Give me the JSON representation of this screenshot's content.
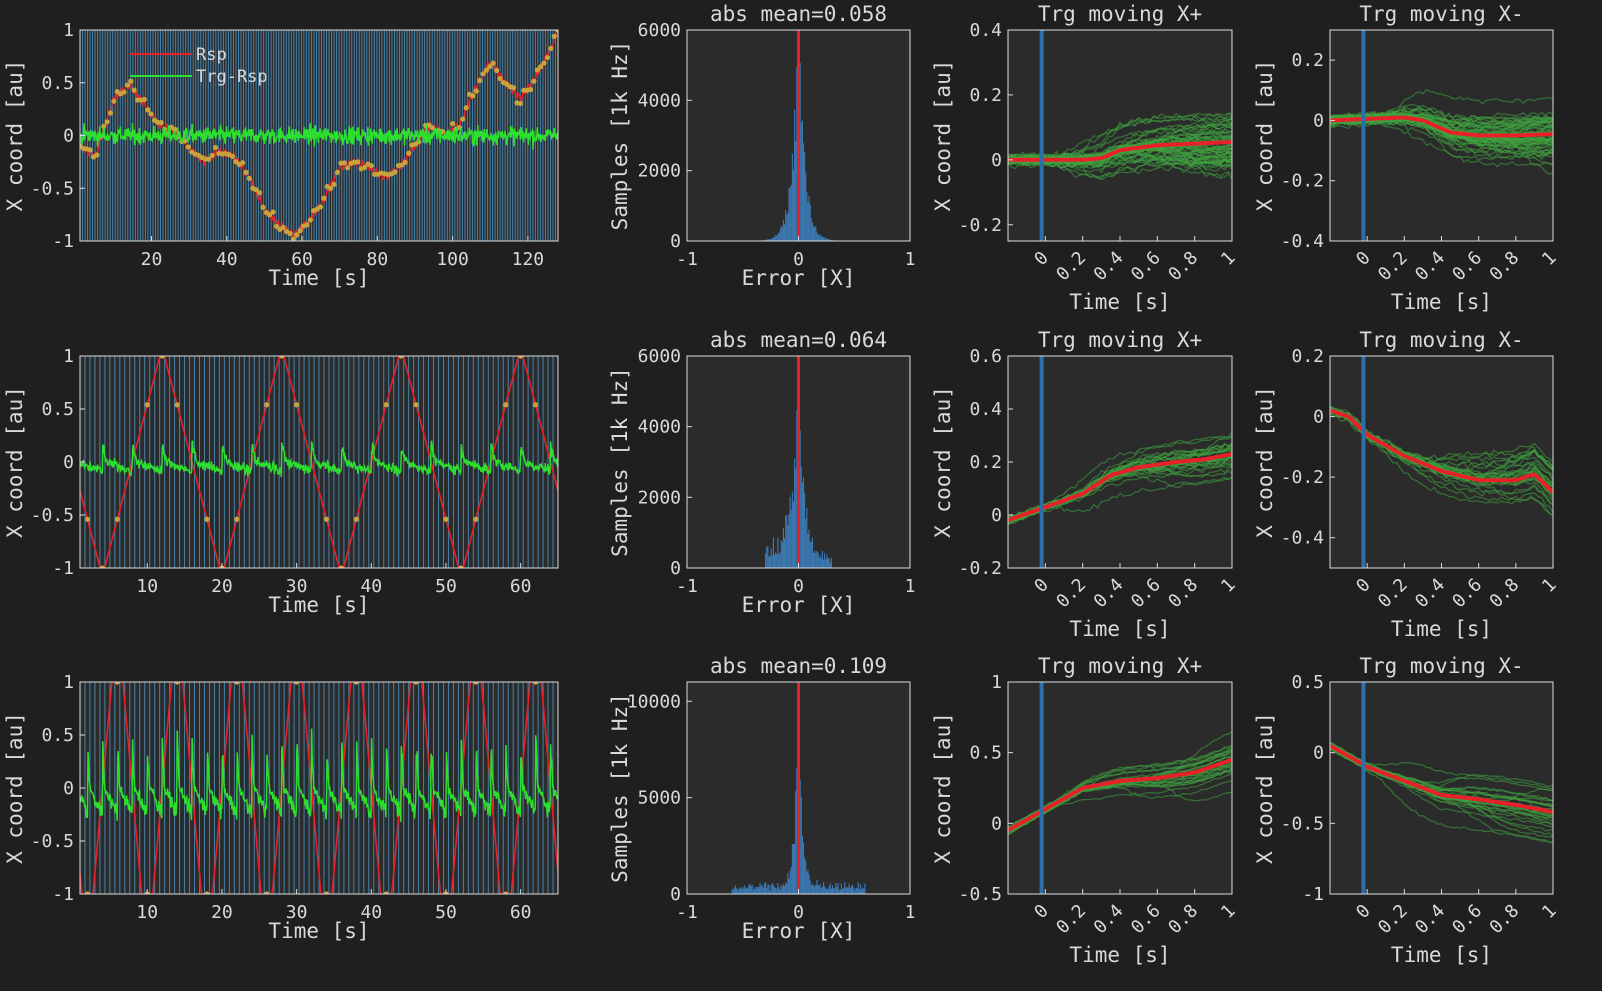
{
  "figure": {
    "background": "#1f1f1f",
    "axes_color": "#2b2b2b",
    "text_color": "#d9d9d9"
  },
  "chart_data": [
    {
      "id": "r1-trace",
      "type": "line",
      "row": 0,
      "col": 0,
      "xlabel": "Time [s]",
      "ylabel": "X coord [au]",
      "xlim": [
        1,
        128
      ],
      "ylim": [
        -1,
        1
      ],
      "xticks": [
        20,
        40,
        60,
        80,
        100,
        120
      ],
      "xtick_labels": [
        "20",
        "40",
        "60",
        "80",
        "100",
        "120"
      ],
      "yticks": [
        -1,
        -0.5,
        0,
        0.5,
        1
      ],
      "ytick_labels": [
        "-1",
        "-0.5",
        "0",
        "0.5",
        "1"
      ],
      "legend": {
        "position": "top-left",
        "entries": [
          "Rsp",
          "Trg-Rsp"
        ]
      },
      "target_markers": "random walk",
      "series": [
        {
          "name": "Rsp",
          "color": "#e8202a",
          "knots": [
            [
              1,
              -0.1
            ],
            [
              5,
              -0.2
            ],
            [
              10,
              0.35
            ],
            [
              14,
              0.48
            ],
            [
              18,
              0.3
            ],
            [
              22,
              0.1
            ],
            [
              26,
              0.05
            ],
            [
              30,
              -0.12
            ],
            [
              34,
              -0.25
            ],
            [
              38,
              -0.15
            ],
            [
              42,
              -0.2
            ],
            [
              46,
              -0.4
            ],
            [
              50,
              -0.7
            ],
            [
              54,
              -0.85
            ],
            [
              58,
              -0.95
            ],
            [
              62,
              -0.8
            ],
            [
              66,
              -0.6
            ],
            [
              70,
              -0.3
            ],
            [
              74,
              -0.25
            ],
            [
              78,
              -0.3
            ],
            [
              82,
              -0.4
            ],
            [
              86,
              -0.3
            ],
            [
              90,
              -0.1
            ],
            [
              94,
              0.1
            ],
            [
              98,
              0.0
            ],
            [
              102,
              0.1
            ],
            [
              106,
              0.45
            ],
            [
              110,
              0.7
            ],
            [
              114,
              0.5
            ],
            [
              118,
              0.35
            ],
            [
              122,
              0.55
            ],
            [
              126,
              0.82
            ],
            [
              128,
              1.0
            ]
          ]
        },
        {
          "name": "Trg-Rsp",
          "color": "#2ee02e",
          "noise": "high-frequency error around 0"
        }
      ]
    },
    {
      "id": "r1-hist",
      "type": "bar",
      "row": 0,
      "col": 1,
      "title": "abs mean=0.058",
      "xlabel": "Error [X]",
      "ylabel": "Samples [1k Hz]",
      "xlim": [
        -1,
        1
      ],
      "ylim": [
        0,
        6000
      ],
      "xticks": [
        -1,
        0,
        1
      ],
      "xtick_labels": [
        "-1",
        "0",
        "1"
      ],
      "yticks": [
        0,
        2000,
        4000,
        6000
      ],
      "ytick_labels": [
        "0",
        "2000",
        "4000",
        "6000"
      ],
      "spread": 0.055,
      "peak": 5900,
      "tails": [
        0,
        0,
        0
      ]
    },
    {
      "id": "r1-xp",
      "type": "line",
      "row": 0,
      "col": 2,
      "title": "Trg moving X+",
      "xlabel": "Time [s]",
      "ylabel": "X coord [au]",
      "xlim": [
        -0.2,
        1
      ],
      "ylim": [
        -0.25,
        0.4
      ],
      "xticks": [
        0,
        0.2,
        0.4,
        0.6,
        0.8,
        1
      ],
      "xtick_labels": [
        "0",
        "0.2",
        "0.4",
        "0.6",
        "0.8",
        "1"
      ],
      "yticks": [
        -0.2,
        0,
        0.2,
        0.4
      ],
      "ytick_labels": [
        "-0.2",
        "0",
        "0.2",
        "0.4"
      ],
      "mean": [
        [
          -0.2,
          0.0
        ],
        [
          0,
          0.0
        ],
        [
          0.2,
          0.0
        ],
        [
          0.3,
          0.005
        ],
        [
          0.4,
          0.03
        ],
        [
          0.6,
          0.045
        ],
        [
          0.8,
          0.05
        ],
        [
          1.0,
          0.055
        ]
      ],
      "n_trials": 60,
      "trial_spread": 0.08,
      "onset_line_x": -0.02
    },
    {
      "id": "r1-xm",
      "type": "line",
      "row": 0,
      "col": 3,
      "title": "Trg moving X-",
      "xlabel": "Time [s]",
      "ylabel": "X coord [au]",
      "xlim": [
        -0.2,
        1
      ],
      "ylim": [
        -0.4,
        0.3
      ],
      "xticks": [
        0,
        0.2,
        0.4,
        0.6,
        0.8,
        1
      ],
      "xtick_labels": [
        "0",
        "0.2",
        "0.4",
        "0.6",
        "0.8",
        "1"
      ],
      "yticks": [
        -0.4,
        -0.2,
        0,
        0.2
      ],
      "ytick_labels": [
        "-0.4",
        "-0.2",
        "0",
        "0.2"
      ],
      "mean": [
        [
          -0.2,
          0.0
        ],
        [
          0,
          0.005
        ],
        [
          0.2,
          0.01
        ],
        [
          0.3,
          0.0
        ],
        [
          0.45,
          -0.04
        ],
        [
          0.6,
          -0.05
        ],
        [
          0.8,
          -0.05
        ],
        [
          1.0,
          -0.045
        ]
      ],
      "n_trials": 60,
      "trial_spread": 0.09,
      "onset_line_x": -0.02
    },
    {
      "id": "r2-trace",
      "type": "line",
      "row": 1,
      "col": 0,
      "xlabel": "Time [s]",
      "ylabel": "X coord [au]",
      "xlim": [
        1,
        65
      ],
      "ylim": [
        -1,
        1
      ],
      "xticks": [
        10,
        20,
        30,
        40,
        50,
        60
      ],
      "xtick_labels": [
        "10",
        "20",
        "30",
        "40",
        "50",
        "60"
      ],
      "yticks": [
        -1,
        -0.5,
        0,
        0.5,
        1
      ],
      "ytick_labels": [
        "-1",
        "-0.5",
        "0",
        "0.5",
        "1"
      ],
      "target_markers": "triangle wave, period 16 s",
      "series": [
        {
          "name": "Rsp",
          "color": "#e8202a",
          "period": 16,
          "phase": 4,
          "shape": "triangle"
        },
        {
          "name": "Trg-Rsp",
          "color": "#2ee02e",
          "amplitude": 0.2
        }
      ]
    },
    {
      "id": "r2-hist",
      "type": "bar",
      "row": 1,
      "col": 1,
      "title": "abs mean=0.064",
      "xlabel": "Error [X]",
      "ylabel": "Samples [1k Hz]",
      "xlim": [
        -1,
        1
      ],
      "ylim": [
        0,
        6000
      ],
      "xticks": [
        -1,
        0,
        1
      ],
      "xtick_labels": [
        "-1",
        "0",
        "1"
      ],
      "yticks": [
        0,
        2000,
        4000,
        6000
      ],
      "ytick_labels": [
        "0",
        "2000",
        "4000",
        "6000"
      ],
      "spread": 0.045,
      "peak": 5900,
      "tails": [
        0.3,
        650,
        0
      ]
    },
    {
      "id": "r2-xp",
      "type": "line",
      "row": 1,
      "col": 2,
      "title": "Trg moving X+",
      "xlabel": "Time [s]",
      "ylabel": "X coord [au]",
      "xlim": [
        -0.2,
        1
      ],
      "ylim": [
        -0.2,
        0.6
      ],
      "xticks": [
        0,
        0.2,
        0.4,
        0.6,
        0.8,
        1
      ],
      "xtick_labels": [
        "0",
        "0.2",
        "0.4",
        "0.6",
        "0.8",
        "1"
      ],
      "yticks": [
        -0.2,
        0,
        0.2,
        0.4,
        0.6
      ],
      "ytick_labels": [
        "-0.2",
        "0",
        "0.2",
        "0.4",
        "0.6"
      ],
      "mean": [
        [
          -0.2,
          -0.02
        ],
        [
          0,
          0.03
        ],
        [
          0.2,
          0.08
        ],
        [
          0.35,
          0.15
        ],
        [
          0.5,
          0.18
        ],
        [
          0.7,
          0.2
        ],
        [
          0.85,
          0.21
        ],
        [
          1.0,
          0.23
        ]
      ],
      "n_trials": 30,
      "trial_spread": 0.07,
      "onset_line_x": -0.02
    },
    {
      "id": "r2-xm",
      "type": "line",
      "row": 1,
      "col": 3,
      "title": "Trg moving X-",
      "xlabel": "Time [s]",
      "ylabel": "X coord [au]",
      "xlim": [
        -0.2,
        1
      ],
      "ylim": [
        -0.5,
        0.2
      ],
      "xticks": [
        0,
        0.2,
        0.4,
        0.6,
        0.8,
        1
      ],
      "xtick_labels": [
        "0",
        "0.2",
        "0.4",
        "0.6",
        "0.8",
        "1"
      ],
      "yticks": [
        -0.4,
        -0.2,
        0,
        0.2
      ],
      "ytick_labels": [
        "-0.4",
        "-0.2",
        "0",
        "0.2"
      ],
      "mean": [
        [
          -0.2,
          0.02
        ],
        [
          -0.1,
          0.0
        ],
        [
          0,
          -0.06
        ],
        [
          0.2,
          -0.13
        ],
        [
          0.4,
          -0.18
        ],
        [
          0.6,
          -0.21
        ],
        [
          0.8,
          -0.21
        ],
        [
          0.9,
          -0.19
        ],
        [
          1.0,
          -0.25
        ]
      ],
      "n_trials": 30,
      "trial_spread": 0.09,
      "onset_line_x": -0.02
    },
    {
      "id": "r3-trace",
      "type": "line",
      "row": 2,
      "col": 0,
      "xlabel": "Time [s]",
      "ylabel": "X coord [au]",
      "xlim": [
        1,
        65
      ],
      "ylim": [
        -1,
        1
      ],
      "xticks": [
        10,
        20,
        30,
        40,
        50,
        60
      ],
      "xtick_labels": [
        "10",
        "20",
        "30",
        "40",
        "50",
        "60"
      ],
      "yticks": [
        -1,
        -0.5,
        0,
        0.5,
        1
      ],
      "ytick_labels": [
        "-1",
        "-0.5",
        "0",
        "0.5",
        "1"
      ],
      "target_markers": "square-ish wave, period 8 s",
      "series": [
        {
          "name": "Rsp",
          "color": "#e8202a",
          "period": 8,
          "phase": 2,
          "shape": "trapezoid"
        },
        {
          "name": "Trg-Rsp",
          "color": "#2ee02e",
          "amplitude": 0.55
        }
      ]
    },
    {
      "id": "r3-hist",
      "type": "bar",
      "row": 2,
      "col": 1,
      "title": "abs mean=0.109",
      "xlabel": "Error [X]",
      "ylabel": "Samples [1k Hz]",
      "xlim": [
        -1,
        1
      ],
      "ylim": [
        0,
        11000
      ],
      "xticks": [
        -1,
        0,
        1
      ],
      "xtick_labels": [
        "-1",
        "0",
        "1"
      ],
      "yticks": [
        0,
        5000,
        10000
      ],
      "ytick_labels": [
        "0",
        "5000",
        "10000"
      ],
      "spread": 0.03,
      "peak": 10900,
      "tails": [
        0.6,
        450,
        500
      ]
    },
    {
      "id": "r3-xp",
      "type": "line",
      "row": 2,
      "col": 2,
      "title": "Trg moving X+",
      "xlabel": "Time [s]",
      "ylabel": "X coord [au]",
      "xlim": [
        -0.2,
        1
      ],
      "ylim": [
        -0.5,
        1
      ],
      "xticks": [
        0,
        0.2,
        0.4,
        0.6,
        0.8,
        1
      ],
      "xtick_labels": [
        "0",
        "0.2",
        "0.4",
        "0.6",
        "0.8",
        "1"
      ],
      "yticks": [
        -0.5,
        0,
        0.5,
        1
      ],
      "ytick_labels": [
        "-0.5",
        "0",
        "0.5",
        "1"
      ],
      "mean": [
        [
          -0.2,
          -0.05
        ],
        [
          0,
          0.1
        ],
        [
          0.2,
          0.25
        ],
        [
          0.4,
          0.3
        ],
        [
          0.6,
          0.32
        ],
        [
          0.8,
          0.36
        ],
        [
          1.0,
          0.45
        ]
      ],
      "n_trials": 30,
      "trial_spread": 0.15,
      "onset_line_x": -0.02
    },
    {
      "id": "r3-xm",
      "type": "line",
      "row": 2,
      "col": 3,
      "title": "Trg moving X-",
      "xlabel": "Time [s]",
      "ylabel": "X coord [au]",
      "xlim": [
        -0.2,
        1
      ],
      "ylim": [
        -1,
        0.5
      ],
      "xticks": [
        0,
        0.2,
        0.4,
        0.6,
        0.8,
        1
      ],
      "xtick_labels": [
        "0",
        "0.2",
        "0.4",
        "0.6",
        "0.8",
        "1"
      ],
      "yticks": [
        -1,
        -0.5,
        0,
        0.5
      ],
      "ytick_labels": [
        "-1",
        "-0.5",
        "0",
        "0.5"
      ],
      "mean": [
        [
          -0.2,
          0.05
        ],
        [
          0,
          -0.1
        ],
        [
          0.2,
          -0.2
        ],
        [
          0.4,
          -0.3
        ],
        [
          0.6,
          -0.33
        ],
        [
          0.8,
          -0.37
        ],
        [
          1.0,
          -0.42
        ]
      ],
      "n_trials": 30,
      "trial_spread": 0.17,
      "onset_line_x": -0.02
    }
  ]
}
